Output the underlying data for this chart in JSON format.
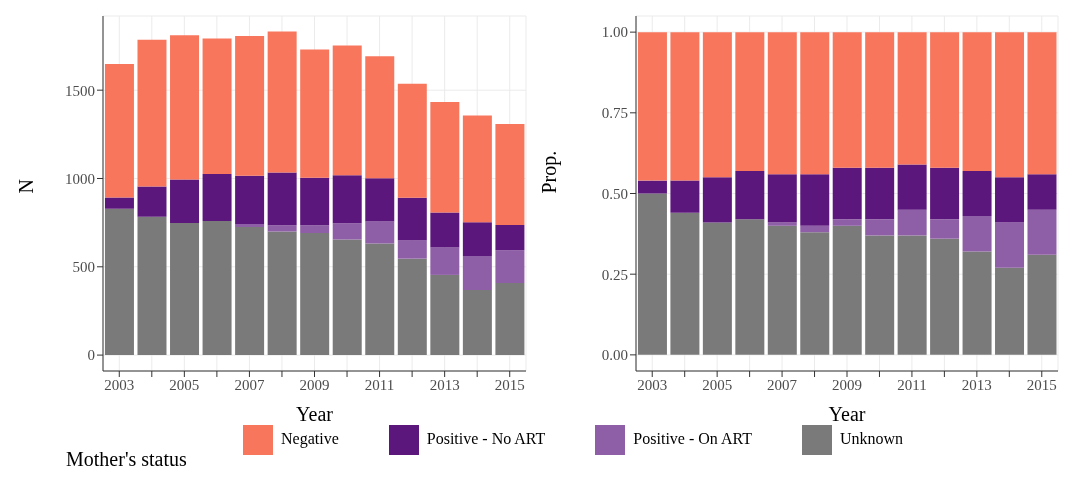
{
  "chart_data": [
    {
      "type": "bar",
      "stacked": true,
      "xlabel": "Year",
      "ylabel": "N",
      "legend_title": "Mother's status",
      "legend": "bottom",
      "grid": true,
      "categories": [
        "2003",
        null,
        "2005",
        null,
        "2007",
        null,
        "2009",
        null,
        "2011",
        null,
        "2013",
        null,
        "2015"
      ],
      "ylim": [
        -90,
        1920
      ],
      "yticks": [
        0,
        500,
        1000,
        1500
      ],
      "series": [
        {
          "name": "Unknown",
          "color": "#7a7a7a",
          "values": [
            828,
            784,
            748,
            759,
            725,
            700,
            691,
            654,
            632,
            546,
            454,
            368,
            408
          ]
        },
        {
          "name": "Positive - On ART",
          "color": "#8e5ea6",
          "values": [
            0,
            0,
            0,
            0,
            17,
            35,
            44,
            92,
            125,
            103,
            155,
            193,
            185
          ]
        },
        {
          "name": "Positive - No ART",
          "color": "#5c177d",
          "values": [
            65,
            170,
            246,
            267,
            273,
            299,
            269,
            273,
            245,
            242,
            198,
            191,
            143
          ]
        },
        {
          "name": "Negative",
          "color": "#f8765c",
          "values": [
            755,
            832,
            817,
            767,
            792,
            798,
            727,
            734,
            690,
            645,
            626,
            605,
            573
          ]
        }
      ]
    },
    {
      "type": "bar",
      "stacked": true,
      "xlabel": "Year",
      "ylabel": "Prop.",
      "grid": true,
      "categories": [
        "2003",
        null,
        "2005",
        null,
        "2007",
        null,
        "2009",
        null,
        "2011",
        null,
        "2013",
        null,
        "2015"
      ],
      "ylim": [
        -0.05,
        1.05
      ],
      "yticks": [
        {
          "value": 0,
          "label": "0.00"
        },
        {
          "value": 0.25,
          "label": "0.25"
        },
        {
          "value": 0.5,
          "label": "0.50"
        },
        {
          "value": 0.75,
          "label": "0.75"
        },
        {
          "value": 1,
          "label": "1.00"
        }
      ],
      "series": [
        {
          "color": "#7a7a7a",
          "values": [
            0.5,
            0.44,
            0.41,
            0.42,
            0.4,
            0.38,
            0.4,
            0.37,
            0.37,
            0.36,
            0.32,
            0.27,
            0.31
          ]
        },
        {
          "color": "#8e5ea6",
          "values": [
            0,
            0,
            0,
            0,
            0.01,
            0.02,
            0.02,
            0.05,
            0.08,
            0.06,
            0.11,
            0.14,
            0.14
          ]
        },
        {
          "color": "#5c177d",
          "values": [
            0.04,
            0.1,
            0.14,
            0.15,
            0.15,
            0.16,
            0.16,
            0.16,
            0.14,
            0.16,
            0.14,
            0.14,
            0.11
          ]
        },
        {
          "color": "#f8765c",
          "values": [
            0.46,
            0.46,
            0.45,
            0.43,
            0.44,
            0.44,
            0.42,
            0.42,
            0.41,
            0.42,
            0.43,
            0.45,
            0.44
          ]
        }
      ]
    }
  ]
}
